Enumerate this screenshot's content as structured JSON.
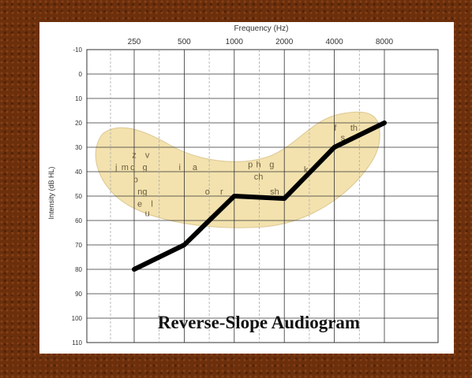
{
  "chart_data": {
    "type": "line",
    "title": "Frequency (Hz)",
    "xlabel": "Frequency (Hz)",
    "ylabel": "Intensity (dB HL)",
    "x_scale": "log2",
    "x_ticks": [
      250,
      500,
      1000,
      2000,
      4000,
      8000
    ],
    "x_tick_labels": [
      "250",
      "500",
      "1000",
      "2000",
      "4000",
      "8000"
    ],
    "y_ticks": [
      -10,
      0,
      10,
      20,
      30,
      40,
      50,
      60,
      70,
      80,
      90,
      100,
      110
    ],
    "y_tick_labels": [
      "-10",
      "0",
      "10",
      "20",
      "30",
      "40",
      "50",
      "60",
      "70",
      "80",
      "90",
      "100",
      "110"
    ],
    "ylim": [
      -10,
      110
    ],
    "y_inverted": true,
    "grid": true,
    "series": [
      {
        "x": [
          250,
          500,
          1000,
          2000,
          4000,
          8000
        ],
        "y": [
          80,
          70,
          50,
          51,
          30,
          20
        ],
        "color": "#000000"
      }
    ],
    "phonemes": [
      {
        "text": "z",
        "x": 250,
        "y": 33
      },
      {
        "text": "v",
        "x": 300,
        "y": 33
      },
      {
        "text": "j",
        "x": 195,
        "y": 38
      },
      {
        "text": "m",
        "x": 220,
        "y": 38
      },
      {
        "text": "d",
        "x": 245,
        "y": 38
      },
      {
        "text": "g",
        "x": 290,
        "y": 38
      },
      {
        "text": "b",
        "x": 255,
        "y": 43
      },
      {
        "text": "i",
        "x": 470,
        "y": 38
      },
      {
        "text": "a",
        "x": 580,
        "y": 38
      },
      {
        "text": "ng",
        "x": 280,
        "y": 48
      },
      {
        "text": "e",
        "x": 270,
        "y": 53
      },
      {
        "text": "l",
        "x": 320,
        "y": 53
      },
      {
        "text": "u",
        "x": 300,
        "y": 57
      },
      {
        "text": "o",
        "x": 690,
        "y": 48
      },
      {
        "text": "r",
        "x": 840,
        "y": 48
      },
      {
        "text": "p",
        "x": 1250,
        "y": 37
      },
      {
        "text": "h",
        "x": 1400,
        "y": 37
      },
      {
        "text": "g",
        "x": 1680,
        "y": 37
      },
      {
        "text": "ch",
        "x": 1400,
        "y": 42
      },
      {
        "text": "sh",
        "x": 1750,
        "y": 48
      },
      {
        "text": "k",
        "x": 2700,
        "y": 39
      },
      {
        "text": "f",
        "x": 4050,
        "y": 22
      },
      {
        "text": "th",
        "x": 5250,
        "y": 22
      },
      {
        "text": "s",
        "x": 4500,
        "y": 26
      }
    ],
    "band_color": "#f2dfa6",
    "annotation": "Reverse-Slope Audiogram"
  }
}
